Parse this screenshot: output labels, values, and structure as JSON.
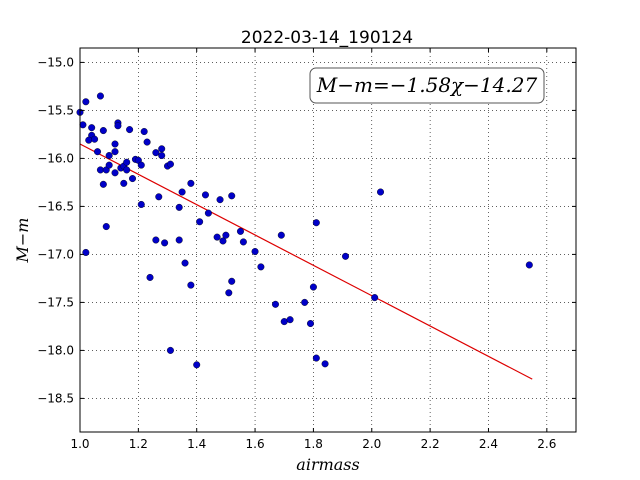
{
  "chart_data": {
    "type": "scatter",
    "title": "2022-03-14_190124",
    "xlabel": "airmass",
    "ylabel": "M−m",
    "xlim": [
      1.0,
      2.7
    ],
    "ylim": [
      -18.85,
      -14.85
    ],
    "y_inverted": true,
    "grid": true,
    "xticks": [
      "1.0",
      "1.2",
      "1.4",
      "1.6",
      "1.8",
      "2.0",
      "2.2",
      "2.4",
      "2.6"
    ],
    "xtick_values": [
      1.0,
      1.2,
      1.4,
      1.6,
      1.8,
      2.0,
      2.2,
      2.4,
      2.6
    ],
    "yticks": [
      "−15.0",
      "−15.5",
      "−16.0",
      "−16.5",
      "−17.0",
      "−17.5",
      "−18.0",
      "−18.5"
    ],
    "ytick_values": [
      -15.0,
      -15.5,
      -16.0,
      -16.5,
      -17.0,
      -17.5,
      -18.0,
      -18.5
    ],
    "annotation": "M−m=−1.58χ−14.27",
    "fit": {
      "slope": -1.58,
      "intercept": -14.27,
      "x_range": [
        1.0,
        2.55
      ],
      "color": "#dd0000"
    },
    "marker_color": "#0000c8",
    "points": [
      [
        1.0,
        -15.52
      ],
      [
        1.01,
        -15.65
      ],
      [
        1.02,
        -15.41
      ],
      [
        1.04,
        -15.68
      ],
      [
        1.04,
        -15.76
      ],
      [
        1.03,
        -15.81
      ],
      [
        1.05,
        -15.8
      ],
      [
        1.07,
        -15.35
      ],
      [
        1.08,
        -15.71
      ],
      [
        1.06,
        -15.93
      ],
      [
        1.07,
        -16.12
      ],
      [
        1.08,
        -16.27
      ],
      [
        1.09,
        -16.12
      ],
      [
        1.1,
        -15.97
      ],
      [
        1.1,
        -16.07
      ],
      [
        1.12,
        -15.85
      ],
      [
        1.12,
        -15.93
      ],
      [
        1.13,
        -15.63
      ],
      [
        1.13,
        -15.66
      ],
      [
        1.12,
        -16.15
      ],
      [
        1.14,
        -16.1
      ],
      [
        1.15,
        -16.08
      ],
      [
        1.16,
        -16.04
      ],
      [
        1.16,
        -16.12
      ],
      [
        1.17,
        -15.7
      ],
      [
        1.15,
        -16.26
      ],
      [
        1.18,
        -16.21
      ],
      [
        1.19,
        -16.01
      ],
      [
        1.2,
        -16.02
      ],
      [
        1.21,
        -16.07
      ],
      [
        1.22,
        -15.72
      ],
      [
        1.23,
        -15.83
      ],
      [
        1.21,
        -16.48
      ],
      [
        1.02,
        -16.98
      ],
      [
        1.09,
        -16.71
      ],
      [
        1.24,
        -17.24
      ],
      [
        1.26,
        -16.85
      ],
      [
        1.27,
        -16.4
      ],
      [
        1.26,
        -15.94
      ],
      [
        1.28,
        -15.97
      ],
      [
        1.28,
        -15.9
      ],
      [
        1.29,
        -16.88
      ],
      [
        1.3,
        -16.08
      ],
      [
        1.31,
        -16.06
      ],
      [
        1.34,
        -16.85
      ],
      [
        1.34,
        -16.51
      ],
      [
        1.35,
        -16.35
      ],
      [
        1.36,
        -17.09
      ],
      [
        1.38,
        -16.26
      ],
      [
        1.38,
        -17.32
      ],
      [
        1.31,
        -18.0
      ],
      [
        1.4,
        -18.15
      ],
      [
        1.41,
        -16.66
      ],
      [
        1.43,
        -16.38
      ],
      [
        1.44,
        -16.57
      ],
      [
        1.47,
        -16.82
      ],
      [
        1.48,
        -16.43
      ],
      [
        1.49,
        -16.86
      ],
      [
        1.5,
        -16.8
      ],
      [
        1.51,
        -17.4
      ],
      [
        1.52,
        -17.28
      ],
      [
        1.52,
        -16.39
      ],
      [
        1.55,
        -16.76
      ],
      [
        1.56,
        -16.87
      ],
      [
        1.6,
        -16.97
      ],
      [
        1.62,
        -17.13
      ],
      [
        1.67,
        -17.52
      ],
      [
        1.69,
        -16.8
      ],
      [
        1.7,
        -17.7
      ],
      [
        1.72,
        -17.68
      ],
      [
        1.77,
        -17.5
      ],
      [
        1.79,
        -17.72
      ],
      [
        1.8,
        -17.34
      ],
      [
        1.81,
        -16.67
      ],
      [
        1.81,
        -18.08
      ],
      [
        1.84,
        -18.14
      ],
      [
        1.91,
        -17.02
      ],
      [
        2.01,
        -17.45
      ],
      [
        2.03,
        -16.35
      ],
      [
        2.54,
        -17.11
      ]
    ]
  }
}
